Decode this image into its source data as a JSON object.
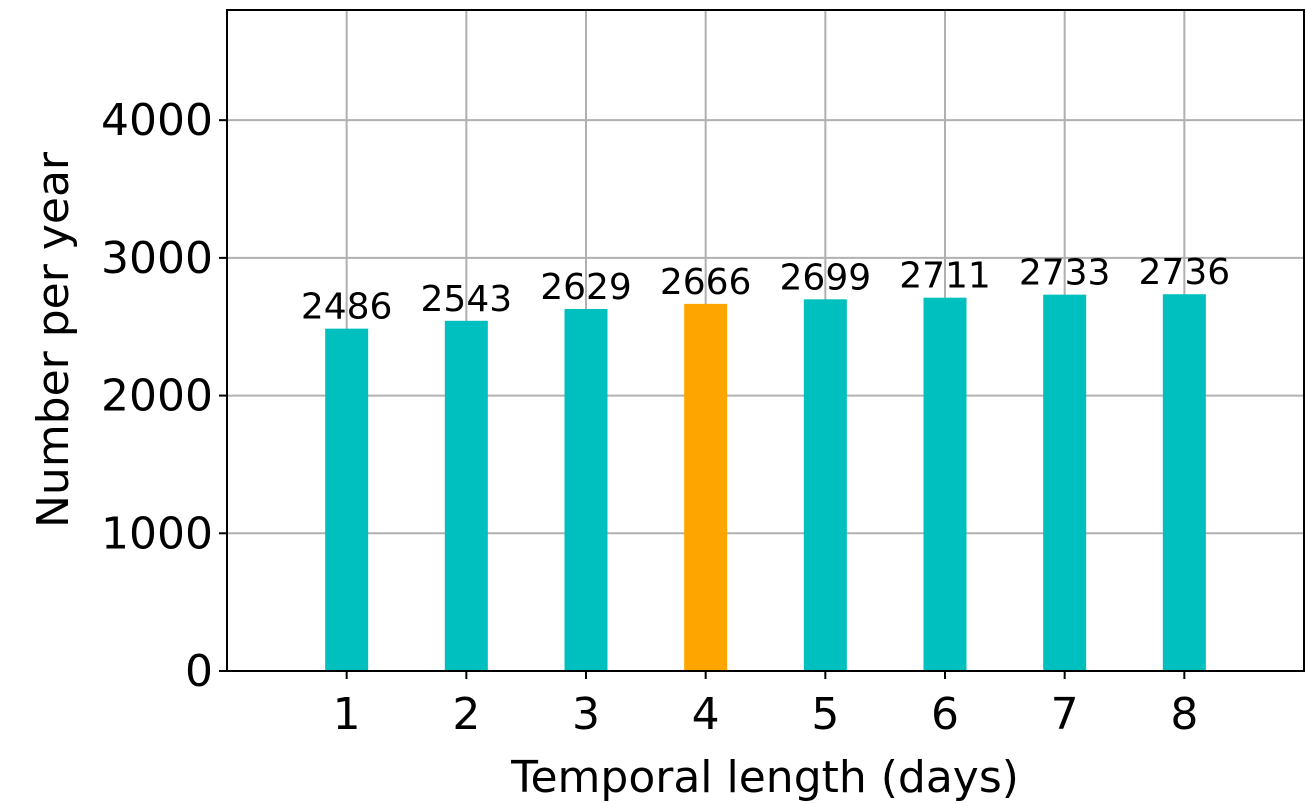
{
  "chart_data": {
    "type": "bar",
    "categories": [
      "1",
      "2",
      "3",
      "4",
      "5",
      "6",
      "7",
      "8"
    ],
    "values": [
      2486,
      2543,
      2629,
      2666,
      2699,
      2711,
      2733,
      2736
    ],
    "data_labels": [
      "2486",
      "2543",
      "2629",
      "2666",
      "2699",
      "2711",
      "2733",
      "2736"
    ],
    "highlight_index": 3,
    "colors": {
      "bar": "#00bfbf",
      "highlight": "#ffa500",
      "grid": "#b0b0b0"
    },
    "xlabel": "Temporal length (days)",
    "ylabel": "Number per year",
    "yticks": [
      0,
      1000,
      2000,
      3000,
      4000
    ],
    "ylim": [
      0,
      4800
    ],
    "xlim": [
      0,
      9
    ],
    "grid": true
  }
}
